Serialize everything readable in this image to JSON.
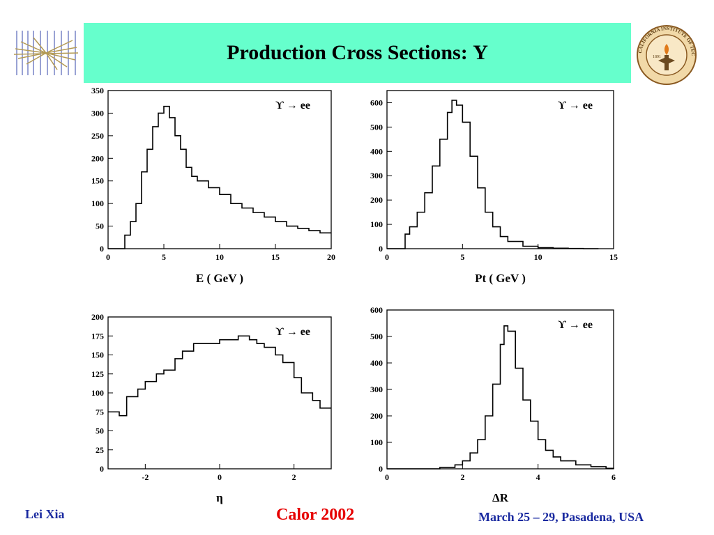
{
  "slide": {
    "title": "Production Cross Sections: Υ",
    "footer_left": "Lei Xia",
    "footer_center": "Calor 2002",
    "footer_right": "March 25 – 29, Pasadena, USA",
    "logo_right_text": "CALIFORNIA INSTITUTE OF TECHNOLOGY",
    "logo_right_year": "1891"
  },
  "colors": {
    "title_bg": "#66ffcc",
    "footer_blue": "#1a2aa0",
    "footer_red": "#e60000"
  },
  "chart_data": [
    {
      "type": "histogram",
      "xlabel": "E ( GeV )",
      "legend": "ϒ → ee",
      "xlim": [
        0,
        20
      ],
      "ylim": [
        0,
        350
      ],
      "xticks": [
        0,
        5,
        10,
        15,
        20
      ],
      "yticks": [
        0,
        50,
        100,
        150,
        200,
        250,
        300,
        350
      ],
      "x": [
        0,
        1,
        1.5,
        2,
        2.5,
        3,
        3.5,
        4,
        4.5,
        5,
        5.5,
        6,
        6.5,
        7,
        7.5,
        8,
        9,
        10,
        11,
        12,
        13,
        14,
        15,
        16,
        17,
        18,
        19,
        20
      ],
      "y": [
        0,
        0,
        30,
        60,
        100,
        170,
        220,
        270,
        300,
        315,
        290,
        250,
        220,
        180,
        160,
        150,
        135,
        120,
        100,
        90,
        80,
        70,
        60,
        50,
        45,
        40,
        35,
        35
      ]
    },
    {
      "type": "histogram",
      "xlabel": "Pt ( GeV )",
      "legend": "ϒ → ee",
      "xlim": [
        0,
        15
      ],
      "ylim": [
        0,
        650
      ],
      "xticks": [
        0,
        5,
        10,
        15
      ],
      "yticks": [
        0,
        100,
        200,
        300,
        400,
        500,
        600
      ],
      "x": [
        0,
        1,
        1.2,
        1.5,
        2,
        2.5,
        3,
        3.5,
        4,
        4.3,
        4.6,
        5,
        5.5,
        6,
        6.5,
        7,
        7.5,
        8,
        9,
        10,
        11,
        12,
        13,
        14
      ],
      "y": [
        0,
        0,
        60,
        90,
        150,
        230,
        340,
        450,
        560,
        610,
        590,
        520,
        380,
        250,
        150,
        90,
        50,
        30,
        10,
        4,
        2,
        1,
        0,
        0
      ]
    },
    {
      "type": "histogram",
      "xlabel": "η",
      "legend": "ϒ → ee",
      "xlim": [
        -3,
        3
      ],
      "ylim": [
        0,
        200
      ],
      "xticks": [
        -2,
        0,
        2
      ],
      "yticks": [
        0,
        25,
        50,
        75,
        100,
        125,
        150,
        175,
        200
      ],
      "x": [
        -3,
        -2.7,
        -2.5,
        -2.2,
        -2,
        -1.7,
        -1.5,
        -1.2,
        -1,
        -0.7,
        -0.5,
        -0.2,
        0,
        0.3,
        0.5,
        0.8,
        1,
        1.2,
        1.5,
        1.7,
        2,
        2.2,
        2.5,
        2.7,
        3
      ],
      "y": [
        75,
        70,
        95,
        105,
        115,
        125,
        130,
        145,
        155,
        165,
        165,
        165,
        170,
        170,
        175,
        170,
        165,
        160,
        150,
        140,
        120,
        100,
        90,
        80,
        80
      ]
    },
    {
      "type": "histogram",
      "xlabel": "ΔR",
      "legend": "ϒ → ee",
      "xlim": [
        0,
        6
      ],
      "ylim": [
        0,
        600
      ],
      "xticks": [
        0,
        2,
        4,
        6
      ],
      "yticks": [
        0,
        100,
        200,
        300,
        400,
        500,
        600
      ],
      "x": [
        0,
        1,
        1.4,
        1.8,
        2,
        2.2,
        2.4,
        2.6,
        2.8,
        3,
        3.1,
        3.2,
        3.4,
        3.6,
        3.8,
        4,
        4.2,
        4.4,
        4.6,
        5,
        5.4,
        5.8,
        6
      ],
      "y": [
        0,
        0,
        5,
        15,
        30,
        60,
        110,
        200,
        320,
        470,
        540,
        520,
        380,
        260,
        180,
        110,
        70,
        45,
        30,
        15,
        8,
        2,
        0
      ]
    }
  ]
}
